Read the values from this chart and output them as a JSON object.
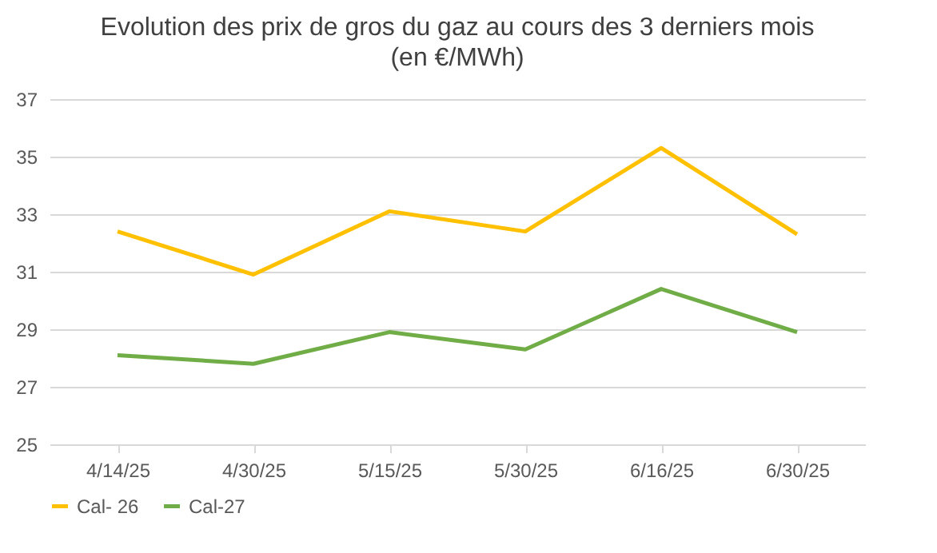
{
  "chart_data": {
    "type": "line",
    "title": "Evolution des prix de gros du gaz au cours des 3 derniers mois",
    "subtitle": "(en €/MWh)",
    "categories": [
      "4/14/25",
      "4/30/25",
      "5/15/25",
      "5/30/25",
      "6/16/25",
      "6/30/25"
    ],
    "series": [
      {
        "name": "Cal- 26",
        "color": "#ffc000",
        "values": [
          32.4,
          30.9,
          33.1,
          32.4,
          35.3,
          32.3
        ]
      },
      {
        "name": "Cal-27",
        "color": "#70ad47",
        "values": [
          28.1,
          27.8,
          28.9,
          28.3,
          30.4,
          28.9
        ]
      }
    ],
    "ylim": [
      25,
      37
    ],
    "yticks": [
      25,
      27,
      29,
      31,
      33,
      35,
      37
    ],
    "grid": "y",
    "legend": "bottom",
    "marker": "none",
    "line_style": "solid"
  }
}
